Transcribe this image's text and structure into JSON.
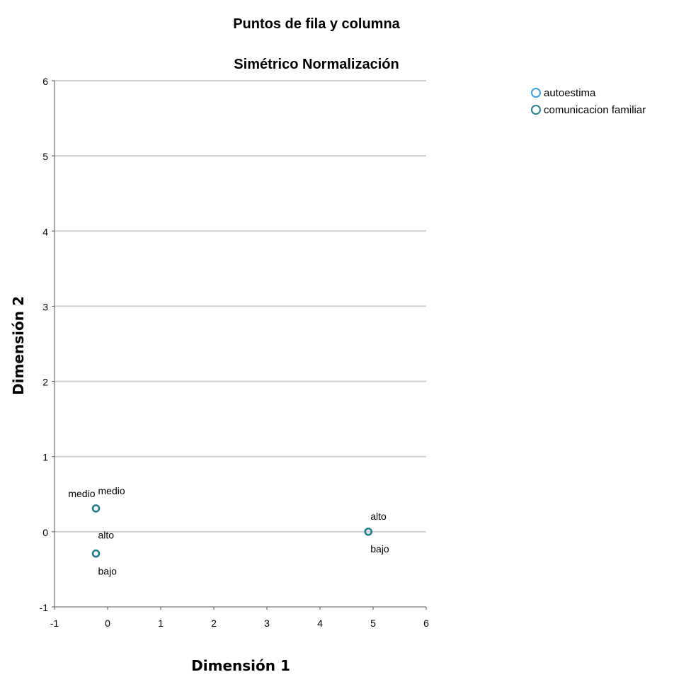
{
  "chart_data": {
    "type": "scatter",
    "title": "Puntos de fila y columna",
    "subtitle": "Simétrico Normalización",
    "xlabel": "Dimensión 1",
    "ylabel": "Dimensión 2",
    "xlim": [
      -1,
      6
    ],
    "ylim": [
      -1,
      6
    ],
    "xticks": [
      "-1",
      "0",
      "1",
      "2",
      "3",
      "4",
      "5",
      "6"
    ],
    "yticks": [
      "-1",
      "0",
      "1",
      "2",
      "3",
      "4",
      "5",
      "6"
    ],
    "grid": "horizontal",
    "legend_position": "top-right",
    "series": [
      {
        "name": "autoestima",
        "color": "#3ca0d6",
        "points": [
          {
            "label": "medio",
            "x": -0.22,
            "y": 0.31
          },
          {
            "label": "alto",
            "x": -0.22,
            "y": -0.29
          },
          {
            "label": "bajo",
            "x": 4.91,
            "y": 0.0
          }
        ]
      },
      {
        "name": "comunicacion familiar",
        "color": "#2a7d8c",
        "points": [
          {
            "label": "medio",
            "x": -0.22,
            "y": 0.31
          },
          {
            "label": "bajo",
            "x": -0.22,
            "y": -0.29
          },
          {
            "label": "alto",
            "x": 4.91,
            "y": 0.0
          }
        ]
      }
    ]
  }
}
